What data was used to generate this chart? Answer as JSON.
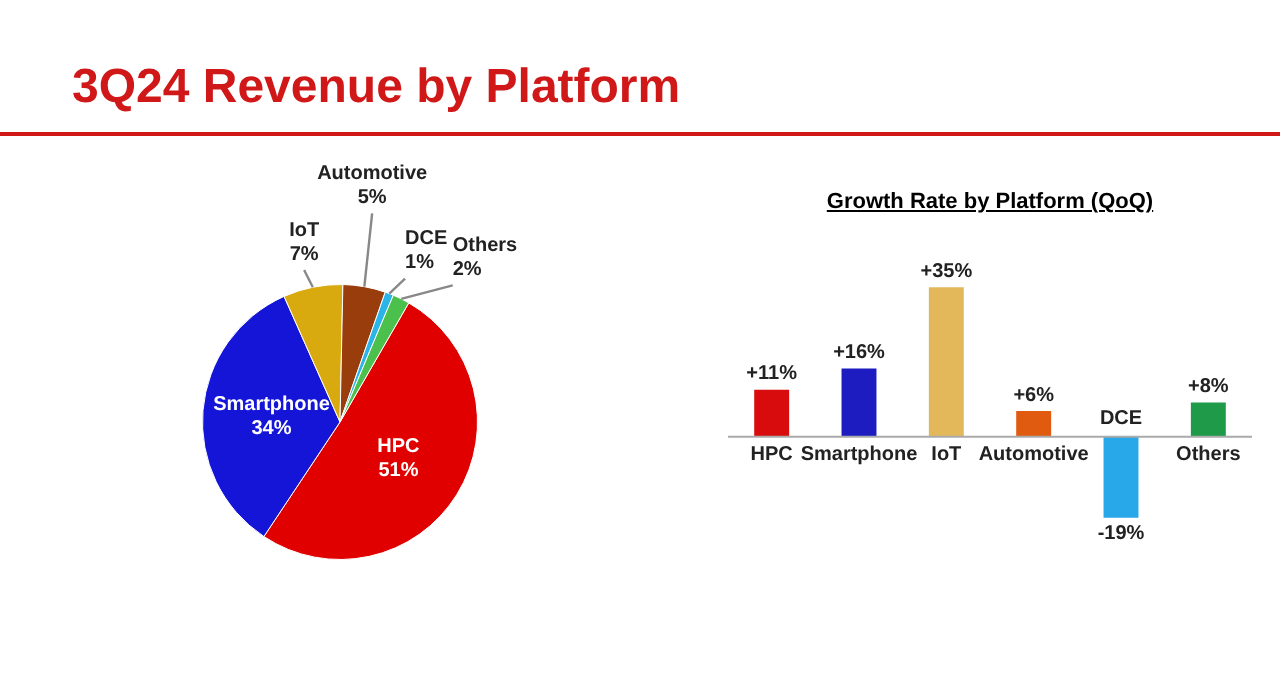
{
  "chart_data": [
    {
      "type": "pie",
      "title": "3Q24 Revenue by Platform",
      "categories": [
        "HPC",
        "Smartphone",
        "IoT",
        "Automotive",
        "DCE",
        "Others"
      ],
      "values": [
        51,
        34,
        7,
        5,
        1,
        2
      ],
      "value_labels": [
        "51%",
        "34%",
        "7%",
        "5%",
        "1%",
        "2%"
      ],
      "colors": [
        "#e00000",
        "#1515d8",
        "#d8aa10",
        "#9a3d0c",
        "#2ab4e8",
        "#4cc04c"
      ],
      "legend": false
    },
    {
      "type": "bar",
      "title": "Growth Rate by Platform (QoQ)",
      "categories": [
        "HPC",
        "Smartphone",
        "IoT",
        "Automotive",
        "DCE",
        "Others"
      ],
      "values": [
        11,
        16,
        35,
        6,
        -19,
        8
      ],
      "value_labels": [
        "+11%",
        "+16%",
        "+35%",
        "+6%",
        "-19%",
        "+8%"
      ],
      "colors": [
        "#d80c0c",
        "#1c1cc0",
        "#e2b85a",
        "#e05a10",
        "#28a8e8",
        "#1e9a48"
      ],
      "legend": false
    }
  ]
}
